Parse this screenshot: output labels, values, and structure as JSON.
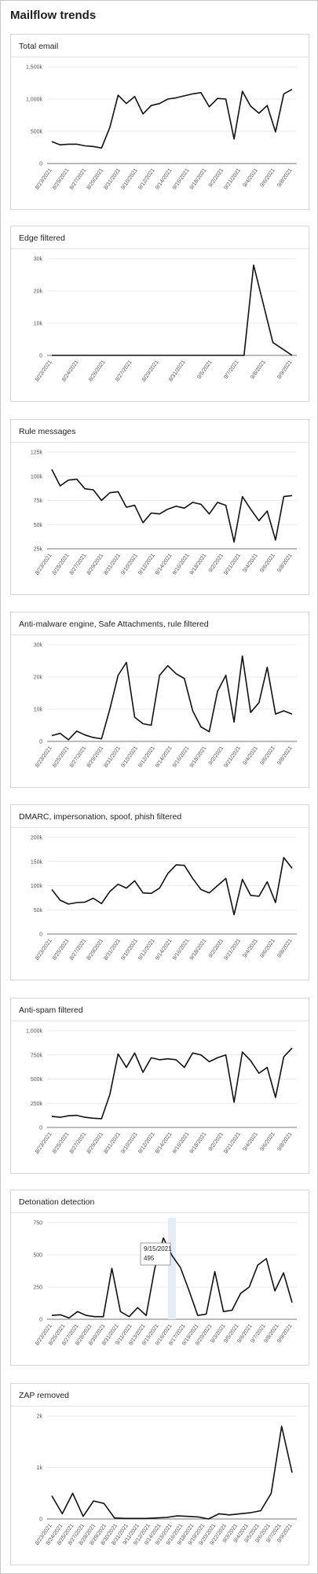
{
  "page": {
    "title": "Mailflow trends"
  },
  "chart_data": [
    {
      "id": "total-email",
      "type": "line",
      "title": "Total email",
      "yticks": [
        "0",
        "500k",
        "1,000k",
        "1,500k"
      ],
      "ylim": [
        0,
        1500000
      ],
      "xtick_labels": [
        "8/23/2021",
        "8/25/2021",
        "8/27/2021",
        "8/29/2021",
        "8/31/2021",
        "9/10/2021",
        "9/12/2021",
        "9/14/2021",
        "9/16/2021",
        "9/18/2021",
        "9/2/2021",
        "9/21/2021",
        "9/4/2021",
        "9/6/2021",
        "9/8/2021"
      ],
      "values": [
        340000,
        290000,
        300000,
        300000,
        275000,
        265000,
        240000,
        560000,
        1060000,
        930000,
        1040000,
        770000,
        900000,
        930000,
        1000000,
        1020000,
        1050000,
        1080000,
        1100000,
        880000,
        1010000,
        1000000,
        380000,
        1120000,
        890000,
        780000,
        900000,
        490000,
        1080000,
        1150000
      ]
    },
    {
      "id": "edge-filtered",
      "type": "line",
      "title": "Edge filtered",
      "yticks": [
        "0",
        "10k",
        "20k",
        "30k"
      ],
      "ylim": [
        0,
        30000
      ],
      "xtick_labels": [
        "8/23/2021",
        "8/24/2021",
        "8/26/2021",
        "8/27/2021",
        "8/29/2021",
        "8/31/2021",
        "9/5/2021",
        "9/7/2021",
        "9/8/2021",
        "9/9/2021"
      ],
      "values": [
        0,
        0,
        0,
        0,
        0,
        0,
        0,
        0,
        0,
        0,
        0,
        0,
        0,
        0,
        0,
        0,
        0,
        0,
        0,
        0,
        0,
        28000,
        16000,
        4000,
        2000,
        0
      ]
    },
    {
      "id": "rule-messages",
      "type": "line",
      "title": "Rule messages",
      "yticks": [
        "25k",
        "50k",
        "75k",
        "100k",
        "125k"
      ],
      "ylim": [
        25000,
        125000
      ],
      "xtick_labels": [
        "8/23/2021",
        "8/25/2021",
        "8/27/2021",
        "8/29/2021",
        "8/31/2021",
        "9/10/2021",
        "9/12/2021",
        "9/14/2021",
        "9/16/2021",
        "9/18/2021",
        "9/2/2021",
        "9/21/2021",
        "9/4/2021",
        "9/6/2021",
        "9/8/2021"
      ],
      "values": [
        107000,
        90000,
        96000,
        97000,
        87000,
        86000,
        75000,
        83000,
        84000,
        68000,
        70000,
        52000,
        62000,
        61000,
        66000,
        69000,
        67000,
        73000,
        71000,
        61000,
        73000,
        70000,
        32000,
        79000,
        66000,
        54000,
        64000,
        34000,
        79000,
        80000
      ]
    },
    {
      "id": "anti-malware",
      "type": "line",
      "title": "Anti-malware engine, Safe Attachments, rule filtered",
      "yticks": [
        "0",
        "10k",
        "20k",
        "30k"
      ],
      "ylim": [
        0,
        30000
      ],
      "xtick_labels": [
        "8/23/2021",
        "8/25/2021",
        "8/27/2021",
        "8/29/2021",
        "8/31/2021",
        "9/10/2021",
        "9/12/2021",
        "9/14/2021",
        "9/16/2021",
        "9/18/2021",
        "9/2/2021",
        "9/21/2021",
        "9/4/2021",
        "9/6/2021",
        "9/8/2021"
      ],
      "values": [
        1800,
        2500,
        500,
        3200,
        2000,
        1200,
        800,
        10000,
        20500,
        24500,
        7500,
        5500,
        5000,
        20500,
        23500,
        21000,
        19500,
        9500,
        4500,
        3000,
        15500,
        20500,
        6000,
        26500,
        9000,
        12000,
        23000,
        8500,
        9500,
        8500
      ]
    },
    {
      "id": "dmarc",
      "type": "line",
      "title": "DMARC, impersonation, spoof, phish filtered",
      "yticks": [
        "0",
        "50k",
        "100k",
        "150k",
        "200k"
      ],
      "ylim": [
        0,
        200000
      ],
      "xtick_labels": [
        "8/23/2021",
        "8/25/2021",
        "8/27/2021",
        "8/29/2021",
        "8/31/2021",
        "9/10/2021",
        "9/12/2021",
        "9/14/2021",
        "9/16/2021",
        "9/18/2021",
        "9/2/2021",
        "9/21/2021",
        "9/4/2021",
        "9/6/2021",
        "9/8/2021"
      ],
      "values": [
        92000,
        70000,
        62000,
        65000,
        66000,
        74000,
        63000,
        88000,
        103000,
        95000,
        110000,
        85000,
        84000,
        95000,
        125000,
        143000,
        142000,
        115000,
        92000,
        85000,
        100000,
        115000,
        40000,
        113000,
        80000,
        78000,
        108000,
        65000,
        158000,
        136000
      ]
    },
    {
      "id": "anti-spam",
      "type": "line",
      "title": "Anti-spam filtered",
      "yticks": [
        "0",
        "250k",
        "500k",
        "750k",
        "1,000k"
      ],
      "ylim": [
        0,
        1000000
      ],
      "xtick_labels": [
        "8/23/2021",
        "8/25/2021",
        "8/27/2021",
        "8/29/2021",
        "8/31/2021",
        "9/10/2021",
        "9/12/2021",
        "9/14/2021",
        "9/16/2021",
        "9/18/2021",
        "9/2/2021",
        "9/21/2021",
        "9/4/2021",
        "9/6/2021",
        "9/8/2021"
      ],
      "values": [
        115000,
        105000,
        120000,
        125000,
        105000,
        95000,
        90000,
        340000,
        760000,
        620000,
        770000,
        570000,
        720000,
        700000,
        710000,
        700000,
        620000,
        770000,
        750000,
        680000,
        720000,
        750000,
        260000,
        780000,
        690000,
        560000,
        620000,
        310000,
        730000,
        820000
      ]
    },
    {
      "id": "detonation",
      "type": "line",
      "title": "Detonation detection",
      "yticks": [
        "0",
        "250",
        "500",
        "750"
      ],
      "ylim": [
        0,
        750
      ],
      "xtick_labels": [
        "8/23/2021",
        "8/25/2021",
        "8/27/2021",
        "8/28/2021",
        "8/30/2021",
        "8/31/2021",
        "9/11/2021",
        "9/13/2021",
        "9/15/2021",
        "9/16/2021",
        "9/17/2021",
        "9/19/2021",
        "9/20/2021",
        "9/3/2021",
        "9/5/2021",
        "9/6/2021",
        "9/7/2021",
        "9/8/2021",
        "9/9/2021"
      ],
      "values": [
        30,
        35,
        10,
        60,
        30,
        20,
        20,
        395,
        60,
        20,
        90,
        30,
        395,
        630,
        495,
        400,
        220,
        30,
        40,
        370,
        60,
        70,
        200,
        250,
        420,
        470,
        220,
        360,
        130
      ],
      "tooltip": {
        "date": "9/15/2021",
        "value": "495",
        "index": 14
      }
    },
    {
      "id": "zap-removed",
      "type": "line",
      "title": "ZAP removed",
      "yticks": [
        "0",
        "1k",
        "2k"
      ],
      "ylim": [
        0,
        2000
      ],
      "xtick_labels": [
        "8/23/2021",
        "8/24/2021",
        "8/25/2021",
        "8/27/2021",
        "8/28/2021",
        "8/29/2021",
        "8/30/2021",
        "8/31/2021",
        "9/11/2021",
        "9/12/2021",
        "9/14/2021",
        "9/15/2021",
        "9/16/2021",
        "9/18/2021",
        "9/19/2021",
        "9/20/2021",
        "9/22/2021",
        "9/3/2021",
        "9/4/2021",
        "9/5/2021",
        "9/6/2021",
        "9/7/2021",
        "9/9/2021"
      ],
      "values": [
        450,
        100,
        500,
        50,
        350,
        300,
        20,
        10,
        10,
        10,
        20,
        30,
        60,
        50,
        40,
        0,
        100,
        80,
        100,
        120,
        160,
        500,
        1800,
        900
      ]
    }
  ]
}
